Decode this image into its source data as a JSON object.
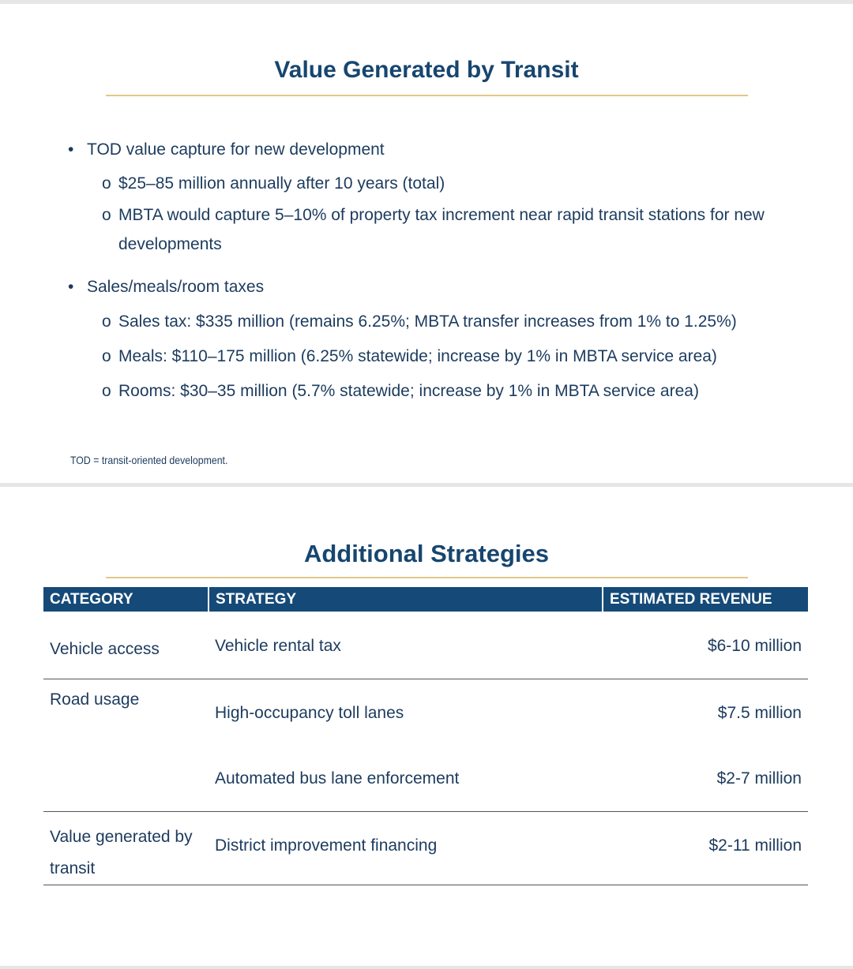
{
  "slide1": {
    "title": "Value Generated by Transit",
    "bullets": [
      {
        "text": "TOD value capture for new development",
        "sub": [
          "$25–85 million annually after 10 years (total)",
          "MBTA would capture 5–10% of property tax increment near rapid transit stations for new",
          "developments"
        ]
      },
      {
        "text": "Sales/meals/room taxes",
        "sub": [
          "Sales tax: $335 million (remains 6.25%; MBTA transfer increases from 1% to 1.25%)",
          "Meals: $110–175 million (6.25% statewide; increase by 1% in MBTA service area)",
          "Rooms: $30–35 million (5.7% statewide; increase by 1% in MBTA service area)"
        ]
      }
    ],
    "footnote": "TOD = transit-oriented development."
  },
  "slide2": {
    "title": "Additional Strategies",
    "headers": [
      "CATEGORY",
      "STRATEGY",
      "ESTIMATED REVENUE"
    ],
    "rows": [
      {
        "category": "Vehicle access",
        "strategy": "Vehicle rental tax",
        "revenue": "$6-10 million"
      },
      {
        "category": "Road usage",
        "strategy": "High-occupancy toll lanes",
        "revenue": "$7.5 million"
      },
      {
        "category": "",
        "strategy": "Automated bus lane enforcement",
        "revenue": "$2-7 million"
      },
      {
        "category": "Value generated by transit",
        "strategy": "District improvement financing",
        "revenue": "$2-11 million"
      }
    ]
  }
}
